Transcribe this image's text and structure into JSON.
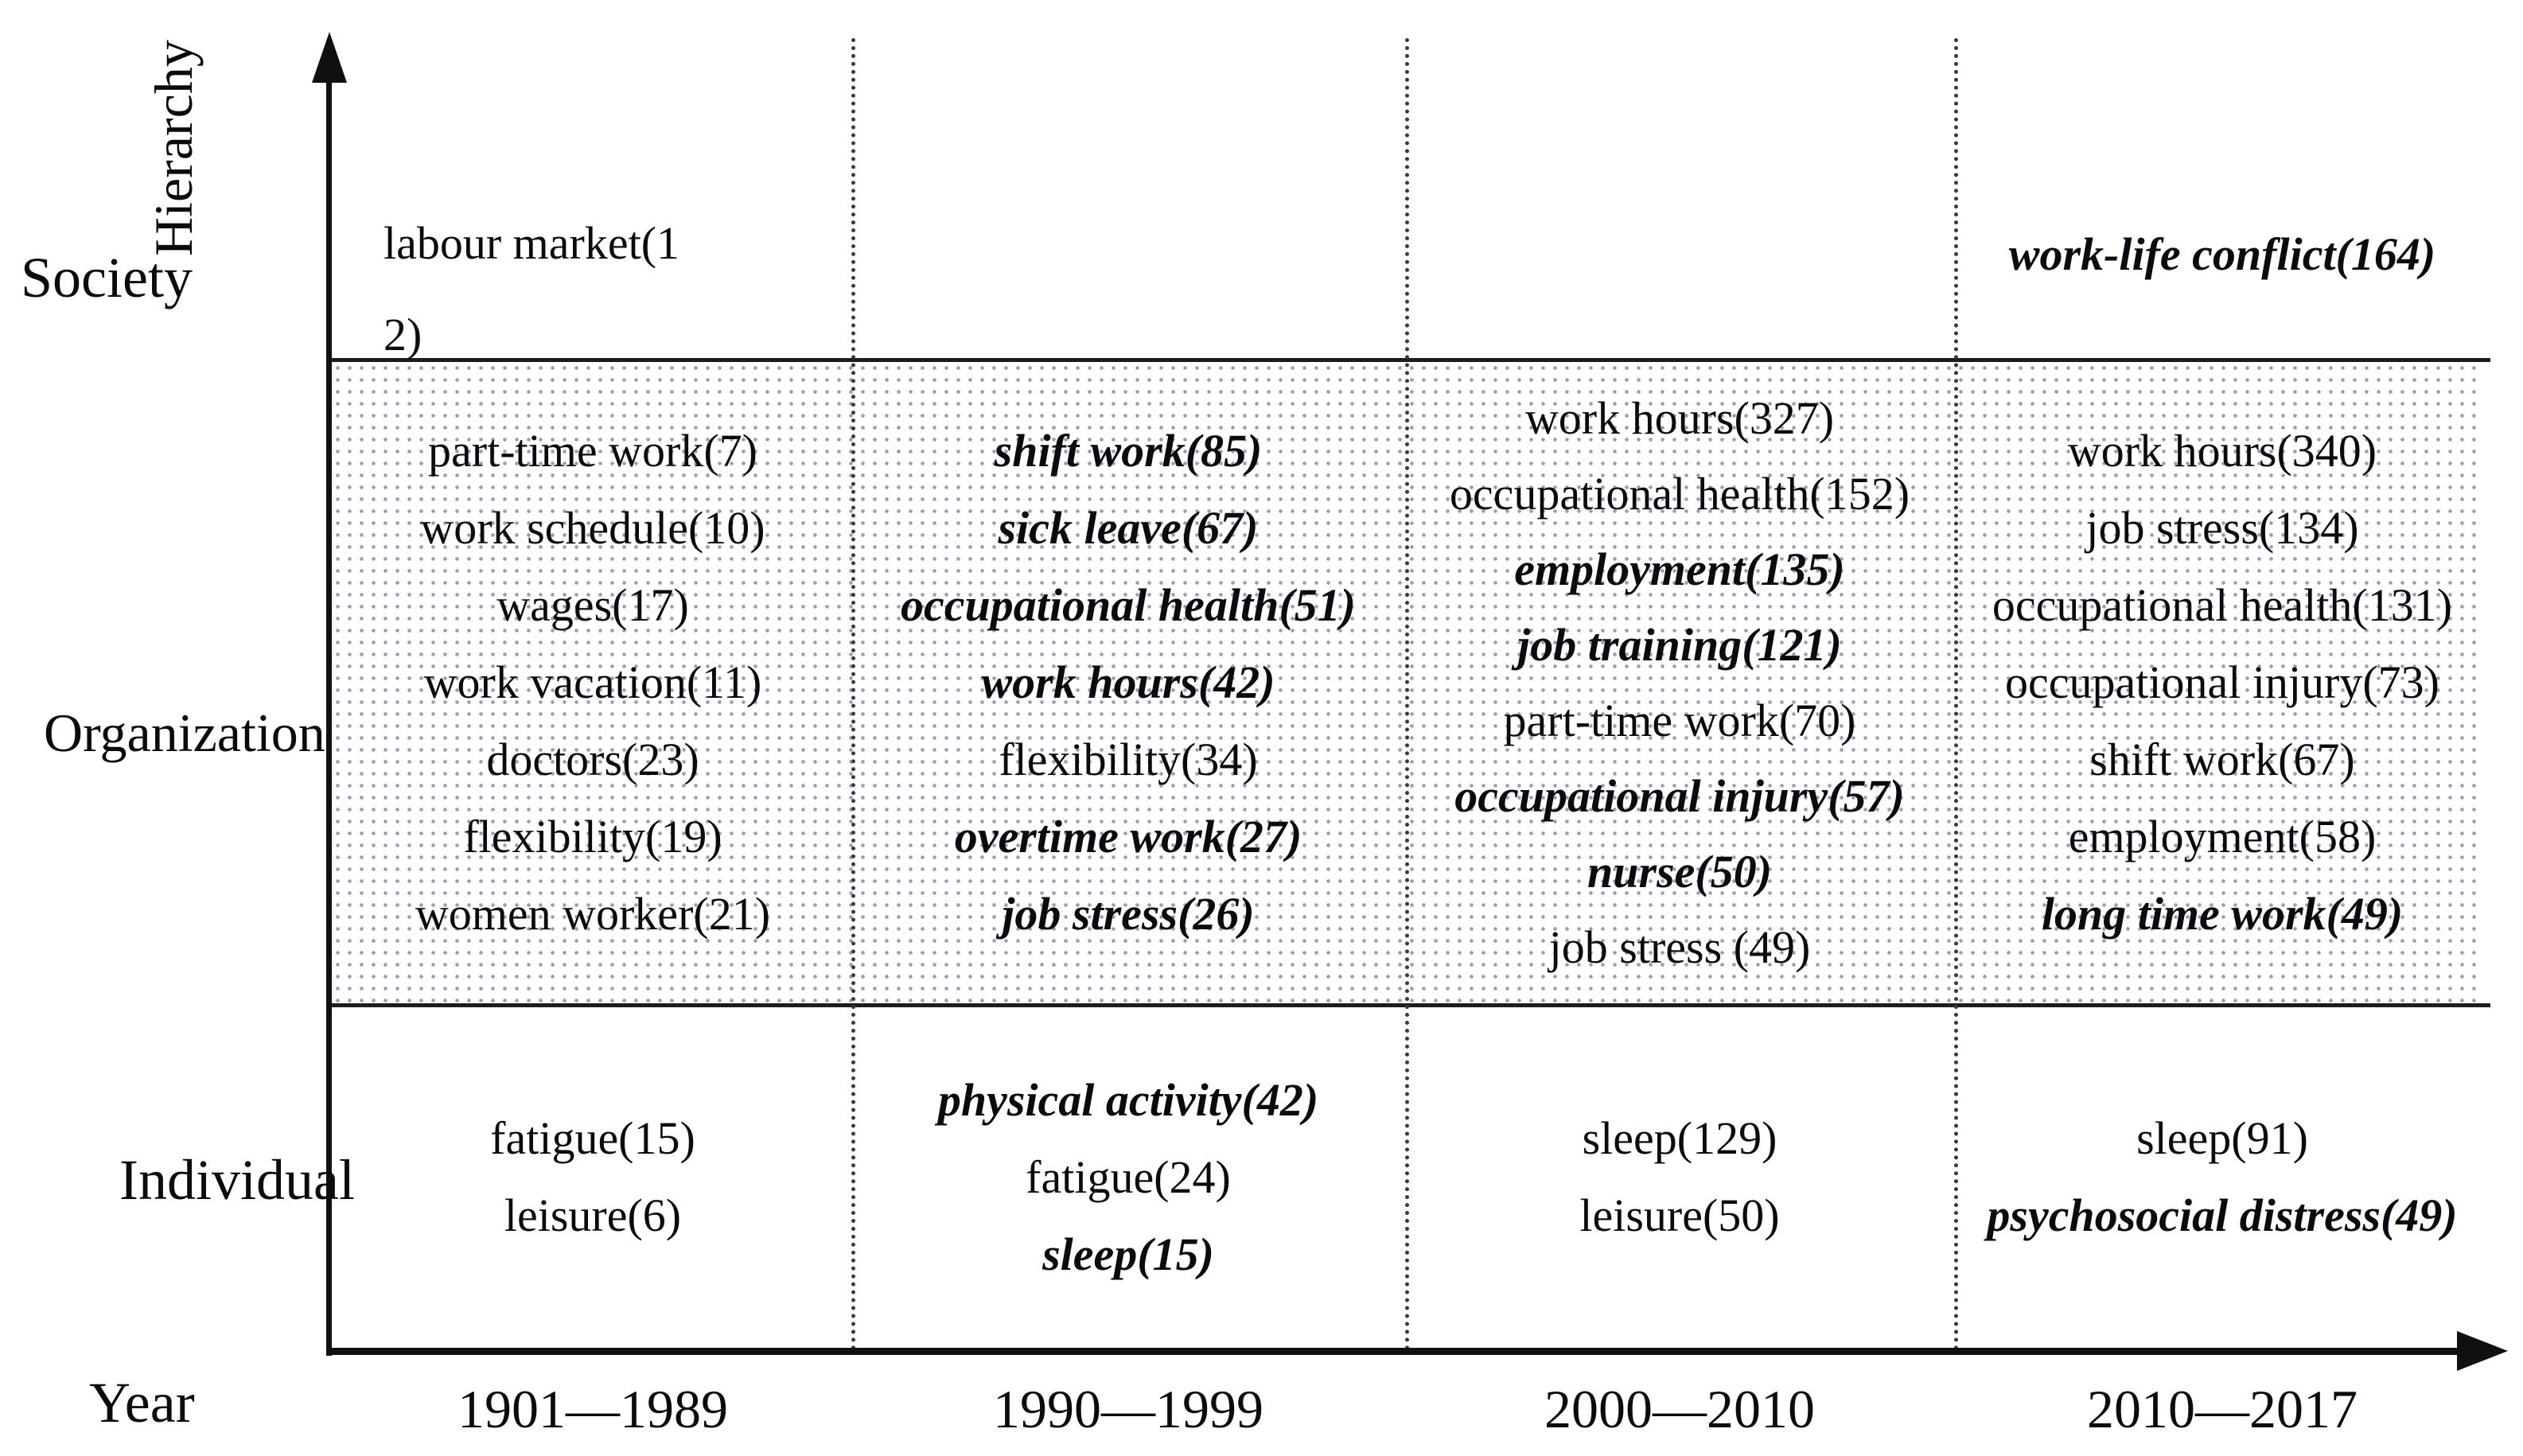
{
  "colors": {
    "background": "#ffffff",
    "text": "#0b0b0f",
    "axis": "#101010",
    "band_dot_pattern": "#97a0b2"
  },
  "chart_data": {
    "type": "table",
    "title": "Keyword frequency by hierarchy level and time period",
    "x_axis": {
      "label": "Year",
      "categories": [
        "1901—1989",
        "1990—1999",
        "2000—2010",
        "2010—2017"
      ]
    },
    "y_axis": {
      "label": "Hierarchy",
      "categories": [
        "Society",
        "Organization",
        "Individual"
      ]
    },
    "cells": {
      "society": {
        "c1": [
          {
            "t": "labour market(1\n2)",
            "s": "n"
          }
        ],
        "c2": [],
        "c3": [],
        "c4": [
          {
            "t": "work-life conflict(164)",
            "s": "bi"
          }
        ]
      },
      "organization": {
        "c1": [
          {
            "t": "part-time work(7)",
            "s": "n"
          },
          {
            "t": "work schedule(10)",
            "s": "n"
          },
          {
            "t": "wages(17)",
            "s": "n"
          },
          {
            "t": "work vacation(11)",
            "s": "n"
          },
          {
            "t": "doctors(23)",
            "s": "n"
          },
          {
            "t": "flexibility(19)",
            "s": "n"
          },
          {
            "t": "women worker(21)",
            "s": "n"
          }
        ],
        "c2": [
          {
            "t": "shift work(85)",
            "s": "bi"
          },
          {
            "t": "sick leave(67)",
            "s": "bi"
          },
          {
            "t": "occupational health(51)",
            "s": "bi"
          },
          {
            "t": "work hours(42)",
            "s": "bi"
          },
          {
            "t": "flexibility(34)",
            "s": "n"
          },
          {
            "t": "overtime work(27)",
            "s": "bi"
          },
          {
            "t": "job stress(26)",
            "s": "bi"
          }
        ],
        "c3": [
          {
            "t": "work hours(327)",
            "s": "n"
          },
          {
            "t": "occupational health(152)",
            "s": "n"
          },
          {
            "t": "employment(135)",
            "s": "bi"
          },
          {
            "t": "job training(121)",
            "s": "bi"
          },
          {
            "t": "part-time work(70)",
            "s": "n"
          },
          {
            "t": "occupational injury(57)",
            "s": "bi"
          },
          {
            "t": "nurse(50)",
            "s": "bi"
          },
          {
            "t": "job stress (49)",
            "s": "n"
          }
        ],
        "c4": [
          {
            "t": "work hours(340)",
            "s": "n"
          },
          {
            "t": "job stress(134)",
            "s": "n"
          },
          {
            "t": "occupational health(131)",
            "s": "n"
          },
          {
            "t": "occupational injury(73)",
            "s": "n"
          },
          {
            "t": "shift work(67)",
            "s": "n"
          },
          {
            "t": "employment(58)",
            "s": "n"
          },
          {
            "t": "long time work(49)",
            "s": "bi"
          }
        ]
      },
      "individual": {
        "c1": [
          {
            "t": "fatigue(15)",
            "s": "n"
          },
          {
            "t": "leisure(6)",
            "s": "n"
          }
        ],
        "c2": [
          {
            "t": "physical activity(42)",
            "s": "bi"
          },
          {
            "t": "fatigue(24)",
            "s": "n"
          },
          {
            "t": "sleep(15)",
            "s": "bi"
          }
        ],
        "c3": [
          {
            "t": "sleep(129)",
            "s": "n"
          },
          {
            "t": "leisure(50)",
            "s": "n"
          }
        ],
        "c4": [
          {
            "t": "sleep(91)",
            "s": "n"
          },
          {
            "t": "psychosocial distress(49)",
            "s": "bi"
          }
        ]
      }
    }
  }
}
